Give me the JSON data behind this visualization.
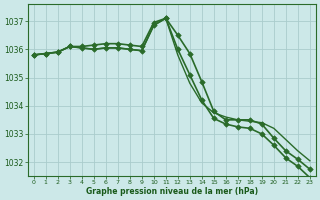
{
  "background_color": "#cce8e8",
  "grid_color": "#aacccc",
  "line_color": "#2a6b2a",
  "text_color": "#1a5a1a",
  "xlabel": "Graphe pression niveau de la mer (hPa)",
  "ylim": [
    1031.5,
    1037.6
  ],
  "yticks": [
    1032,
    1033,
    1034,
    1035,
    1036,
    1037
  ],
  "xlim": [
    -0.5,
    23.5
  ],
  "xticks": [
    0,
    1,
    2,
    3,
    4,
    5,
    6,
    7,
    8,
    9,
    10,
    11,
    12,
    13,
    14,
    15,
    16,
    17,
    18,
    19,
    20,
    21,
    22,
    23
  ],
  "series": [
    {
      "y": [
        1035.8,
        1035.85,
        1035.9,
        1036.1,
        1036.1,
        1036.15,
        1036.2,
        1036.2,
        1036.15,
        1036.1,
        1036.95,
        1037.1,
        1036.5,
        1035.85,
        1034.85,
        1033.8,
        1033.5,
        1033.5,
        1033.5,
        1033.35,
        1032.85,
        1032.4,
        1032.1,
        1031.75
      ],
      "marker": "D",
      "lw": 1.2
    },
    {
      "y": [
        1035.8,
        1035.85,
        1035.9,
        1036.1,
        1036.05,
        1036.0,
        1036.05,
        1036.05,
        1036.0,
        1035.95,
        1036.85,
        1037.1,
        1035.8,
        1034.8,
        1034.1,
        1033.75,
        1033.6,
        1033.5,
        1033.45,
        1033.4,
        1033.2,
        1032.8,
        1032.4,
        1032.05
      ],
      "marker": null,
      "lw": 1.0
    },
    {
      "y": [
        1035.8,
        1035.85,
        1035.9,
        1036.1,
        1036.05,
        1036.0,
        1036.05,
        1036.05,
        1036.0,
        1035.95,
        1036.85,
        1037.1,
        1036.0,
        1035.1,
        1034.2,
        1033.55,
        1033.35,
        1033.25,
        1033.2,
        1033.0,
        1032.6,
        1032.15,
        1031.85,
        1031.45
      ],
      "marker": "D",
      "lw": 1.2
    }
  ]
}
